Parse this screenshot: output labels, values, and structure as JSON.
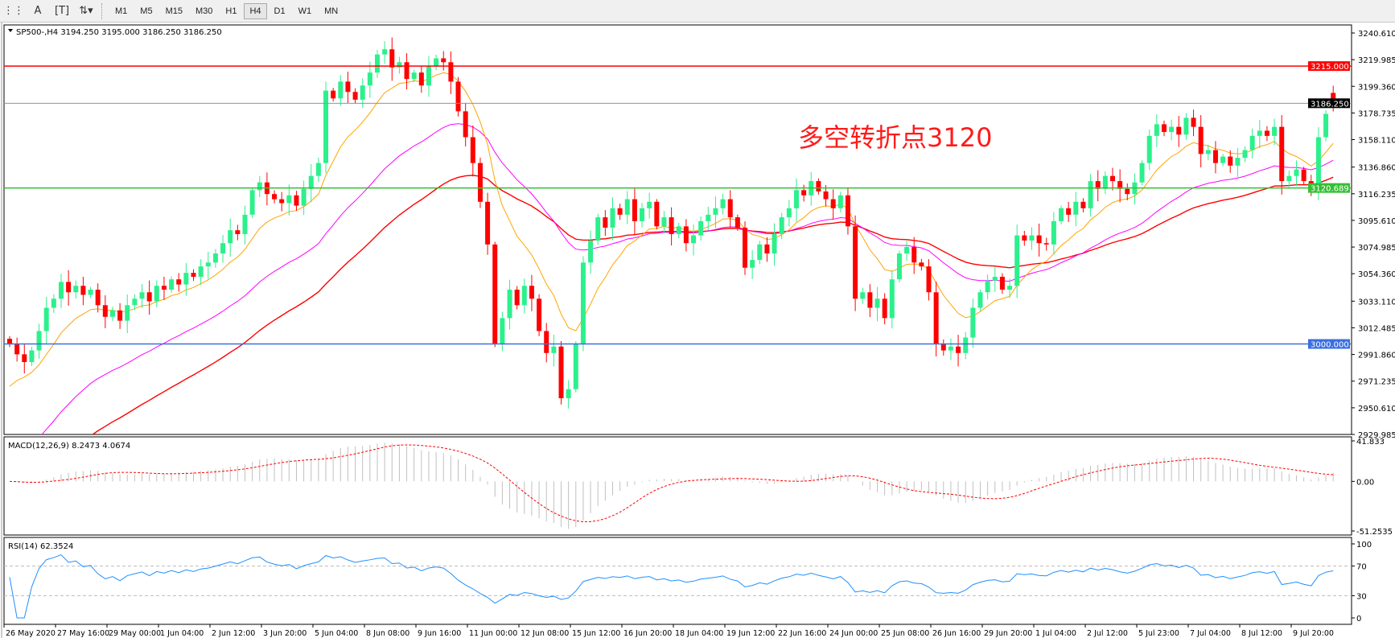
{
  "toolbar": {
    "icons": [
      "grid-dots-icon",
      "text-A-icon",
      "text-box-icon",
      "arrows-dropdown-icon"
    ],
    "timeframes": [
      "M1",
      "M5",
      "M15",
      "M30",
      "H1",
      "H4",
      "D1",
      "W1",
      "MN"
    ],
    "active_timeframe": "H4"
  },
  "chart_info": "SP500-,H4  3194.250 3195.000 3186.250 3186.250",
  "annotation": "多空转折点3120",
  "colors": {
    "bull": "#2cf08c",
    "bear": "#ff0000",
    "ma_fast": "#ffa500",
    "ma_mid": "#ff00ff",
    "ma_slow": "#ff0000",
    "rsi": "#1e90ff",
    "macd_hist": "#c0c0c0",
    "macd_signal": "#ff0000",
    "annotation": "#ff1a1a"
  },
  "chart_data": {
    "type": "candlestick",
    "symbol": "SP500-",
    "timeframe": "H4",
    "ylim": [
      2929.985,
      3240.61
    ],
    "y_ticks": [
      "3240.610",
      "3219.985",
      "3199.360",
      "3178.735",
      "3158.110",
      "3136.860",
      "3116.235",
      "3095.610",
      "3074.985",
      "3054.360",
      "3033.110",
      "3012.485",
      "2991.860",
      "2971.235",
      "2950.610",
      "2929.985"
    ],
    "x_ticks": [
      "26 May 2020",
      "27 May 16:00",
      "29 May 00:00",
      "1 Jun 04:00",
      "2 Jun 12:00",
      "3 Jun 20:00",
      "5 Jun 04:00",
      "8 Jun 08:00",
      "9 Jun 16:00",
      "11 Jun 00:00",
      "12 Jun 08:00",
      "15 Jun 12:00",
      "16 Jun 20:00",
      "18 Jun 04:00",
      "19 Jun 12:00",
      "22 Jun 16:00",
      "24 Jun 00:00",
      "25 Jun 08:00",
      "26 Jun 16:00",
      "29 Jun 20:00",
      "1 Jul 04:00",
      "2 Jul 12:00",
      "5 Jul 23:00",
      "7 Jul 04:00",
      "8 Jul 12:00",
      "9 Jul 20:00"
    ],
    "closes": [
      3000,
      2992,
      2986,
      2995,
      3010,
      3028,
      3035,
      3048,
      3040,
      3045,
      3038,
      3042,
      3030,
      3021,
      3026,
      3018,
      3030,
      3035,
      3040,
      3033,
      3045,
      3042,
      3050,
      3046,
      3055,
      3052,
      3060,
      3063,
      3070,
      3078,
      3088,
      3085,
      3100,
      3119,
      3125,
      3116,
      3112,
      3109,
      3115,
      3107,
      3120,
      3130,
      3140,
      3196,
      3190,
      3203,
      3195,
      3189,
      3200,
      3210,
      3224,
      3228,
      3214,
      3218,
      3205,
      3210,
      3200,
      3215,
      3221,
      3218,
      3203,
      3180,
      3160,
      3140,
      3110,
      3077,
      3000,
      3020,
      3042,
      3030,
      3045,
      3035,
      3010,
      2993,
      2998,
      2958,
      2965,
      3000,
      3063,
      3080,
      3098,
      3090,
      3105,
      3100,
      3112,
      3095,
      3105,
      3110,
      3091,
      3098,
      3085,
      3091,
      3078,
      3084,
      3095,
      3100,
      3105,
      3112,
      3098,
      3090,
      3059,
      3065,
      3077,
      3070,
      3085,
      3098,
      3105,
      3119,
      3115,
      3126,
      3118,
      3112,
      3105,
      3115,
      3091,
      3035,
      3040,
      3028,
      3035,
      3020,
      3050,
      3070,
      3075,
      3063,
      3060,
      3040,
      3000,
      2995,
      2998,
      2993,
      3005,
      3028,
      3040,
      3049,
      3052,
      3042,
      3045,
      3084,
      3080,
      3084,
      3078,
      3077,
      3095,
      3105,
      3100,
      3110,
      3105,
      3126,
      3120,
      3130,
      3126,
      3120,
      3116,
      3125,
      3140,
      3161,
      3170,
      3164,
      3168,
      3162,
      3175,
      3168,
      3147,
      3150,
      3140,
      3145,
      3138,
      3144,
      3150,
      3161,
      3165,
      3161,
      3168,
      3126,
      3130,
      3135,
      3126,
      3120,
      3160,
      3178,
      3186.25
    ],
    "last_open": 3194.25,
    "levels": [
      {
        "price": 3215.0,
        "label": "3215.000",
        "color": "#ff0000"
      },
      {
        "price": 3186.25,
        "label": "3186.250",
        "color": "#000000",
        "line": "#8a96a0"
      },
      {
        "price": 3120.689,
        "label": "3120.689",
        "color": "#33c033"
      },
      {
        "price": 3000.0,
        "label": "3000.000",
        "color": "#3a6fe0"
      }
    ],
    "macd": {
      "label": "MACD(12,26,9) 8.2473 4.0674",
      "ylim": [
        -51.2535,
        41.833
      ],
      "ticks": [
        "41.833",
        "0.00",
        "-51.2535"
      ]
    },
    "rsi": {
      "label": "RSI(14) 62.3524",
      "ylim": [
        0,
        100
      ],
      "levels": [
        30,
        70
      ],
      "ticks": [
        "100",
        "70",
        "30",
        "0"
      ]
    }
  }
}
